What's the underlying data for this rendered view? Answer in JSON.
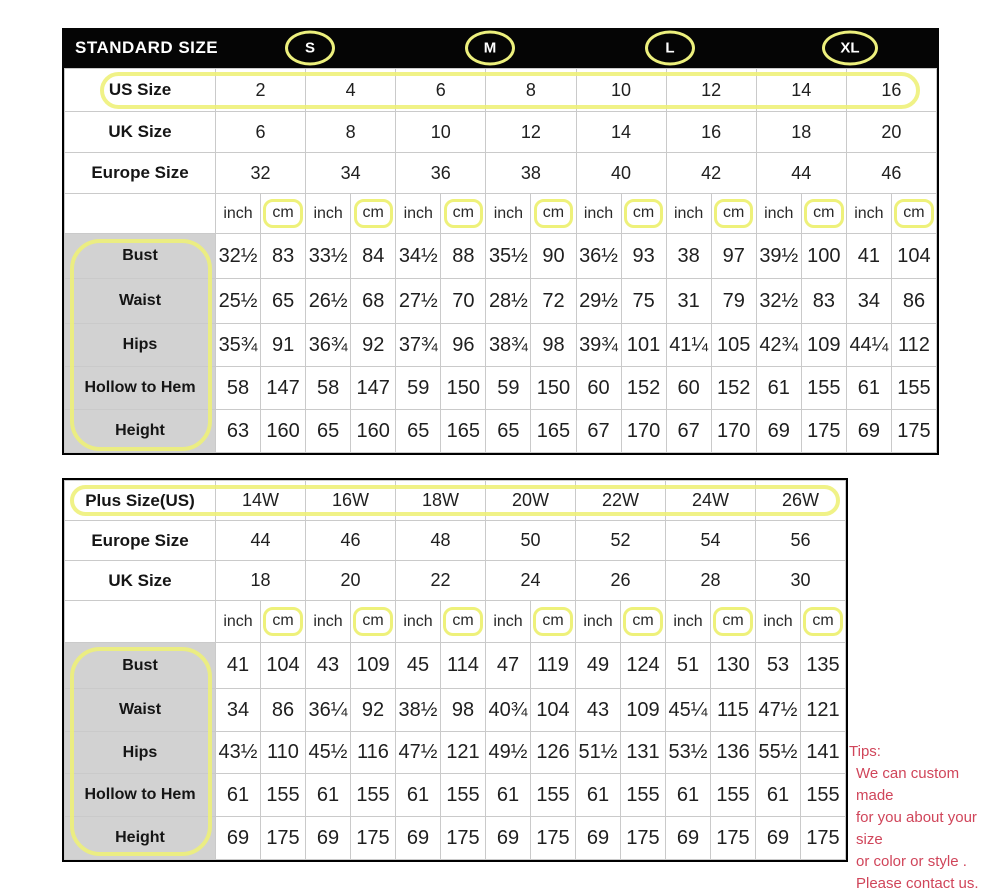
{
  "colors": {
    "header_bg": "#050505",
    "highlight_yellow": "#eef17a",
    "label_gray": "#d2d2d2",
    "grid_line": "#cacaca",
    "tips_red": "#d0455a"
  },
  "standard_table": {
    "header": {
      "title": "STANDARD SIZE",
      "size_badges": [
        "S",
        "M",
        "L",
        "XL"
      ]
    },
    "size_rows": [
      {
        "label": "US Size",
        "highlight": true,
        "values": [
          "2",
          "4",
          "6",
          "8",
          "10",
          "12",
          "14",
          "16"
        ]
      },
      {
        "label": "UK Size",
        "highlight": false,
        "values": [
          "6",
          "8",
          "10",
          "12",
          "14",
          "16",
          "18",
          "20"
        ]
      },
      {
        "label": "Europe Size",
        "highlight": false,
        "values": [
          "32",
          "34",
          "36",
          "38",
          "40",
          "42",
          "44",
          "46"
        ]
      }
    ],
    "unit_row": {
      "inch": "inch",
      "cm": "cm",
      "columns": 8
    },
    "measure_rows": [
      {
        "label": "Bust",
        "values": [
          "32½",
          "83",
          "33½",
          "84",
          "34½",
          "88",
          "35½",
          "90",
          "36½",
          "93",
          "38",
          "97",
          "39½",
          "100",
          "41",
          "104"
        ]
      },
      {
        "label": "Waist",
        "values": [
          "25½",
          "65",
          "26½",
          "68",
          "27½",
          "70",
          "28½",
          "72",
          "29½",
          "75",
          "31",
          "79",
          "32½",
          "83",
          "34",
          "86"
        ]
      },
      {
        "label": "Hips",
        "values": [
          "35¾",
          "91",
          "36¾",
          "92",
          "37¾",
          "96",
          "38¾",
          "98",
          "39¾",
          "101",
          "41¼",
          "105",
          "42¾",
          "109",
          "44¼",
          "112"
        ]
      },
      {
        "label": "Hollow to Hem",
        "values": [
          "58",
          "147",
          "58",
          "147",
          "59",
          "150",
          "59",
          "150",
          "60",
          "152",
          "60",
          "152",
          "61",
          "155",
          "61",
          "155"
        ]
      },
      {
        "label": "Height",
        "values": [
          "63",
          "160",
          "65",
          "160",
          "65",
          "165",
          "65",
          "165",
          "67",
          "170",
          "67",
          "170",
          "69",
          "175",
          "69",
          "175"
        ]
      }
    ]
  },
  "plus_table": {
    "size_rows": [
      {
        "label": "Plus Size(US)",
        "highlight": true,
        "values": [
          "14W",
          "16W",
          "18W",
          "20W",
          "22W",
          "24W",
          "26W"
        ]
      },
      {
        "label": "Europe Size",
        "highlight": false,
        "values": [
          "44",
          "46",
          "48",
          "50",
          "52",
          "54",
          "56"
        ]
      },
      {
        "label": "UK Size",
        "highlight": false,
        "values": [
          "18",
          "20",
          "22",
          "24",
          "26",
          "28",
          "30"
        ]
      }
    ],
    "unit_row": {
      "inch": "inch",
      "cm": "cm",
      "columns": 7
    },
    "measure_rows": [
      {
        "label": "Bust",
        "values": [
          "41",
          "104",
          "43",
          "109",
          "45",
          "114",
          "47",
          "119",
          "49",
          "124",
          "51",
          "130",
          "53",
          "135"
        ]
      },
      {
        "label": "Waist",
        "values": [
          "34",
          "86",
          "36¼",
          "92",
          "38½",
          "98",
          "40¾",
          "104",
          "43",
          "109",
          "45¼",
          "115",
          "47½",
          "121"
        ]
      },
      {
        "label": "Hips",
        "values": [
          "43½",
          "110",
          "45½",
          "116",
          "47½",
          "121",
          "49½",
          "126",
          "51½",
          "131",
          "53½",
          "136",
          "55½",
          "141"
        ]
      },
      {
        "label": "Hollow to Hem",
        "values": [
          "61",
          "155",
          "61",
          "155",
          "61",
          "155",
          "61",
          "155",
          "61",
          "155",
          "61",
          "155",
          "61",
          "155"
        ]
      },
      {
        "label": "Height",
        "values": [
          "69",
          "175",
          "69",
          "175",
          "69",
          "175",
          "69",
          "175",
          "69",
          "175",
          "69",
          "175",
          "69",
          "175"
        ]
      }
    ]
  },
  "tips": {
    "title": "Tips:",
    "lines": [
      "We can custom made",
      "for you about your size",
      "or color or style .",
      "Please contact us."
    ]
  }
}
